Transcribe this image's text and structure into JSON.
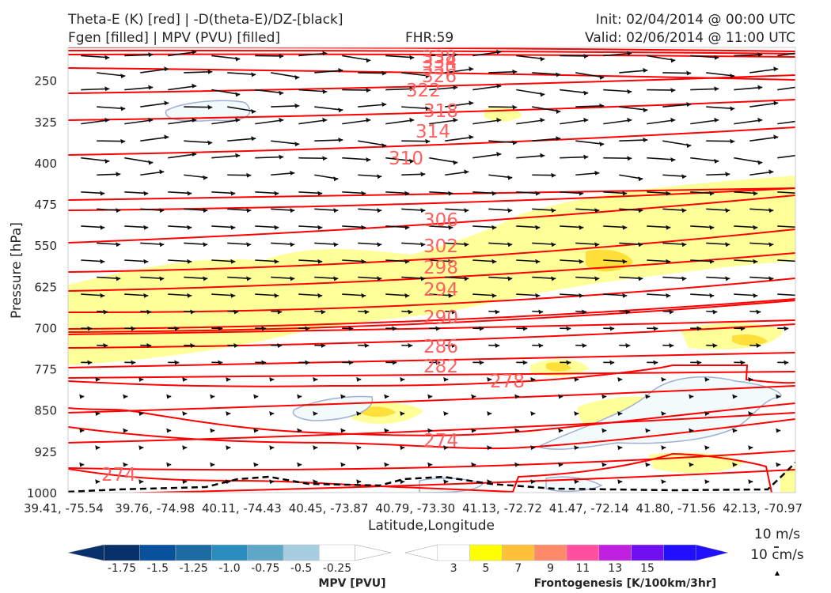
{
  "header": {
    "left_line1": "Theta-E (K) [red] | -D(theta-E)/DZ-[black]",
    "left_line2": "Fgen [filled] | MPV (PVU) [filled]",
    "fhr": "FHR:59",
    "init": "Init: 02/04/2014 @ 00:00 UTC",
    "valid": "Valid: 02/06/2014 @ 11:00 UTC"
  },
  "chart_data": {
    "type": "contour",
    "xlabel": "Latitude,Longitude",
    "ylabel": "Pressure [hPa]",
    "yticks": [
      "250",
      "325",
      "400",
      "475",
      "550",
      "625",
      "700",
      "775",
      "850",
      "925",
      "1000"
    ],
    "ytick_values": [
      250,
      325,
      400,
      475,
      550,
      625,
      700,
      775,
      850,
      925,
      1000
    ],
    "ylim": [
      1000,
      190
    ],
    "xticks": [
      "39.41, -75.54",
      "39.76, -74.98",
      "40.11, -74.43",
      "40.45, -73.87",
      "40.79, -73.30",
      "41.13, -72.72",
      "41.47, -72.14",
      "41.80, -71.56",
      "42.13, -70.97"
    ],
    "theta_e_labels": [
      "338",
      "334",
      "330",
      "326",
      "322",
      "318",
      "314",
      "310",
      "306",
      "302",
      "298",
      "294",
      "290",
      "286",
      "282",
      "278",
      "274",
      "274"
    ],
    "theta_e_levels": [
      338,
      334,
      330,
      326,
      322,
      318,
      314,
      310,
      306,
      302,
      298,
      294,
      290,
      286,
      282,
      278,
      274
    ],
    "mpv_colorbar": {
      "label": "MPV [PVU]",
      "ticks": [
        "-1.75",
        "-1.5",
        "-1.25",
        "-1.0",
        "-0.75",
        "-0.5",
        "-0.25"
      ],
      "colors": [
        "#08306b",
        "#08306b",
        "#08519c",
        "#1c6ba3",
        "#2b8cbe",
        "#5fa7c9",
        "#a6cde0",
        "#ffffff",
        "#ffffff"
      ]
    },
    "fgen_colorbar": {
      "label": "Frontogenesis [K/100km/3hr]",
      "ticks": [
        "3",
        "5",
        "7",
        "9",
        "11",
        "13",
        "15"
      ],
      "colors": [
        "#ffffff",
        "#ffffff",
        "#ffff00",
        "#ffc13a",
        "#ff8a6a",
        "#ff50a0",
        "#c020e0",
        "#7010f0",
        "#2010ff",
        "#2010ff"
      ]
    },
    "wind_legend": [
      "10 m/s",
      "10 cm/s"
    ]
  }
}
